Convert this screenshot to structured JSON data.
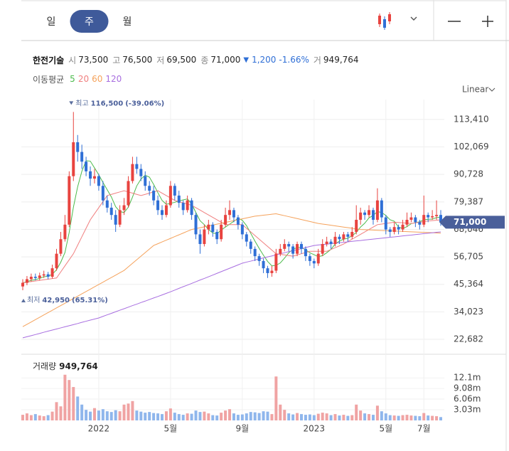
{
  "tabs": [
    {
      "label": "일",
      "active": false
    },
    {
      "label": "주",
      "active": true
    },
    {
      "label": "월",
      "active": false
    }
  ],
  "header": {
    "name": "한전기술",
    "fields": [
      {
        "label": "시",
        "value": "73,500"
      },
      {
        "label": "고",
        "value": "76,500"
      },
      {
        "label": "저",
        "value": "69,500"
      },
      {
        "label": "종",
        "value": "71,000"
      }
    ],
    "change": {
      "arrow": "▼",
      "amount": "1,200",
      "percent": "-1.66%"
    },
    "volume": {
      "label": "거",
      "value": "949,764"
    }
  },
  "chart_data": [
    {
      "type": "candlestick",
      "legend_title": "이동평균",
      "scale_label": "Linear",
      "log_scale": false,
      "grid": true,
      "up_color": "#e8433f",
      "down_color": "#2f6fd6",
      "categories": [
        null,
        null,
        null,
        null,
        null,
        null,
        null,
        null,
        null,
        null,
        null,
        null,
        null,
        null,
        null,
        null,
        null,
        null,
        "2022",
        null,
        null,
        null,
        null,
        null,
        null,
        null,
        null,
        null,
        null,
        null,
        null,
        null,
        null,
        null,
        null,
        "5월",
        null,
        null,
        null,
        null,
        null,
        null,
        null,
        null,
        null,
        null,
        null,
        null,
        null,
        null,
        null,
        null,
        "9월",
        null,
        null,
        null,
        null,
        null,
        null,
        null,
        null,
        null,
        null,
        null,
        null,
        null,
        null,
        null,
        null,
        "2023",
        null,
        null,
        null,
        null,
        null,
        null,
        null,
        null,
        null,
        null,
        null,
        null,
        null,
        null,
        null,
        null,
        "5월",
        null,
        null,
        null,
        null,
        null,
        null,
        null,
        null,
        "7월",
        null,
        null,
        null,
        null
      ],
      "open": [
        44500,
        46000,
        47500,
        48500,
        48000,
        49000,
        49500,
        48500,
        52000,
        58000,
        64000,
        70000,
        90000,
        104000,
        100000,
        96000,
        92000,
        89000,
        90000,
        86000,
        80000,
        77000,
        74000,
        70000,
        76000,
        78000,
        88000,
        95000,
        93000,
        90000,
        86000,
        84000,
        80000,
        76000,
        74000,
        78000,
        86000,
        82000,
        79000,
        76000,
        80000,
        74000,
        66000,
        62000,
        68000,
        70000,
        67000,
        64000,
        70000,
        74000,
        76000,
        73000,
        70000,
        66000,
        63000,
        60000,
        57000,
        55000,
        52000,
        50000,
        51000,
        58000,
        60000,
        62000,
        61000,
        58000,
        62000,
        60000,
        57000,
        55000,
        54000,
        58000,
        62000,
        63000,
        62000,
        65000,
        64000,
        66000,
        65000,
        67000,
        72000,
        75000,
        74000,
        76000,
        72000,
        80000,
        73000,
        68000,
        67000,
        69000,
        68000,
        70000,
        72000,
        73000,
        71000,
        70000,
        74000,
        73000,
        73500,
        74000
      ],
      "high": [
        47500,
        48800,
        49800,
        49800,
        50200,
        51000,
        50500,
        53500,
        60000,
        67000,
        74000,
        92000,
        116500,
        107000,
        103000,
        98000,
        94000,
        93000,
        91000,
        88000,
        82000,
        79000,
        76000,
        78000,
        81000,
        90000,
        98000,
        98000,
        95000,
        92000,
        88000,
        86000,
        82000,
        78000,
        80000,
        88000,
        87000,
        84000,
        80000,
        82000,
        81000,
        75000,
        68000,
        70000,
        72000,
        71000,
        68000,
        72000,
        77000,
        80000,
        77000,
        74000,
        71000,
        67000,
        64000,
        61000,
        58000,
        56000,
        53000,
        53000,
        60000,
        62000,
        64000,
        63000,
        62000,
        63000,
        63000,
        61000,
        58000,
        56000,
        60000,
        64000,
        65000,
        64000,
        67000,
        66000,
        67000,
        67000,
        69000,
        78000,
        77000,
        76000,
        78000,
        77000,
        85000,
        81000,
        74000,
        69000,
        71000,
        70000,
        72000,
        75000,
        75000,
        74000,
        72000,
        82000,
        75000,
        76000,
        80000,
        76000
      ],
      "low": [
        42950,
        45000,
        46500,
        47000,
        47000,
        48000,
        47500,
        47800,
        51000,
        57000,
        63000,
        69000,
        88000,
        96000,
        93000,
        90000,
        86000,
        87000,
        84000,
        78000,
        75000,
        72000,
        67000,
        69000,
        74000,
        77000,
        87000,
        91000,
        88000,
        84000,
        82000,
        78000,
        74000,
        72000,
        73000,
        77000,
        80000,
        77000,
        74000,
        75000,
        72000,
        64000,
        58000,
        61000,
        66000,
        65000,
        62000,
        63000,
        69000,
        72000,
        71000,
        68000,
        64000,
        61000,
        58000,
        55000,
        53000,
        50000,
        48000,
        48500,
        50000,
        57000,
        59000,
        59000,
        56000,
        57000,
        58000,
        55000,
        53000,
        52000,
        53000,
        57000,
        61000,
        60000,
        61000,
        62000,
        63000,
        63000,
        64000,
        66000,
        70000,
        72000,
        73000,
        70000,
        71000,
        71000,
        66000,
        65000,
        66000,
        66000,
        67000,
        69000,
        71000,
        69000,
        68000,
        69000,
        71000,
        72000,
        72000,
        69500
      ],
      "close": [
        46000,
        47500,
        48500,
        48000,
        49000,
        49500,
        48500,
        52000,
        58000,
        64000,
        70000,
        90000,
        104000,
        100000,
        96000,
        92000,
        89000,
        90000,
        86000,
        80000,
        77000,
        74000,
        70000,
        76000,
        78000,
        88000,
        95000,
        93000,
        90000,
        86000,
        84000,
        80000,
        76000,
        74000,
        78000,
        86000,
        82000,
        79000,
        76000,
        80000,
        74000,
        66000,
        62000,
        68000,
        70000,
        67000,
        64000,
        70000,
        74000,
        76000,
        73000,
        70000,
        66000,
        63000,
        60000,
        57000,
        55000,
        52000,
        50000,
        51000,
        58000,
        60000,
        62000,
        61000,
        58000,
        62000,
        60000,
        57000,
        55000,
        54000,
        58000,
        62000,
        63000,
        62000,
        65000,
        64000,
        66000,
        65000,
        67000,
        72000,
        75000,
        74000,
        76000,
        72000,
        80000,
        73000,
        68000,
        67000,
        69000,
        68000,
        70000,
        72000,
        73000,
        71000,
        70000,
        74000,
        73000,
        73500,
        74000,
        71000
      ],
      "series": [
        {
          "name": "5",
          "color": "#4cbb4c",
          "values": [
            46000,
            46500,
            47000,
            47300,
            47800,
            48500,
            48700,
            49500,
            51400,
            54500,
            58500,
            66800,
            77200,
            85600,
            92000,
            96400,
            96200,
            93400,
            90600,
            87400,
            84400,
            81400,
            77400,
            75400,
            75000,
            77200,
            81400,
            86000,
            88800,
            90400,
            89600,
            86600,
            83200,
            80000,
            78400,
            78800,
            79200,
            79800,
            80200,
            80600,
            78600,
            75000,
            71600,
            70000,
            68000,
            66600,
            66200,
            67800,
            69000,
            70200,
            71400,
            72600,
            71800,
            69600,
            66400,
            63200,
            60200,
            57400,
            54800,
            53000,
            53200,
            54200,
            56200,
            58400,
            59800,
            60600,
            60600,
            59600,
            58400,
            57600,
            56800,
            57200,
            58400,
            59800,
            62000,
            63200,
            64000,
            64400,
            65400,
            66800,
            69000,
            70600,
            72800,
            73800,
            75400,
            75000,
            73800,
            72000,
            71400,
            69000,
            68400,
            69200,
            70400,
            70800,
            71200,
            72000,
            72200,
            72300,
            72900,
            73100
          ]
        },
        {
          "name": "20",
          "color": "#f07f7f",
          "values": [
            46000,
            46250,
            46500,
            46750,
            47000,
            47250,
            47500,
            47750,
            48000,
            50500,
            53000,
            55500,
            58000,
            61500,
            65000,
            68500,
            72000,
            74500,
            77000,
            79500,
            82000,
            82500,
            83000,
            83500,
            84000,
            83500,
            83000,
            82500,
            82000,
            82500,
            83000,
            83500,
            84000,
            83000,
            82000,
            81000,
            80000,
            79500,
            79000,
            78500,
            78000,
            77000,
            76000,
            75000,
            74000,
            73000,
            72000,
            71000,
            70000,
            70000,
            70000,
            70000,
            70000,
            68500,
            67000,
            65500,
            64000,
            62500,
            61000,
            59500,
            58000,
            57750,
            57500,
            57250,
            57000,
            57500,
            58000,
            58500,
            59000,
            59000,
            59000,
            59000,
            59000,
            59750,
            60500,
            61250,
            62000,
            63000,
            64000,
            65000,
            66000,
            67000,
            68000,
            69000,
            70000,
            70250,
            70500,
            70750,
            71000,
            70900,
            70750,
            70600,
            70500,
            70750,
            71000,
            71250,
            71500,
            71650,
            71800,
            72000
          ]
        },
        {
          "name": "60",
          "color": "#f5a25b",
          "values": [
            27900,
            28870,
            29830,
            30800,
            31770,
            32740,
            33700,
            34670,
            35640,
            36600,
            37570,
            38540,
            39500,
            40470,
            41440,
            42400,
            43370,
            44340,
            45300,
            46270,
            47240,
            48200,
            49170,
            50140,
            51100,
            52570,
            54040,
            55510,
            56990,
            58460,
            59930,
            61400,
            62130,
            62870,
            63600,
            64330,
            65070,
            65800,
            66530,
            67270,
            68000,
            68370,
            68730,
            69100,
            69470,
            69830,
            70200,
            70570,
            70930,
            71300,
            71670,
            72030,
            72400,
            72770,
            73130,
            73500,
            73700,
            73900,
            74100,
            74300,
            74500,
            74100,
            73700,
            73300,
            72900,
            72500,
            72100,
            71700,
            71300,
            70900,
            70500,
            70250,
            70000,
            69750,
            69500,
            69250,
            69000,
            68750,
            68500,
            68250,
            68000,
            67920,
            67840,
            67760,
            67680,
            67610,
            67530,
            67450,
            67370,
            67290,
            67210,
            67130,
            67050,
            66970,
            66890,
            66820,
            66740,
            66660,
            66580,
            66500
          ]
        },
        {
          "name": "120",
          "color": "#a86ee0",
          "values": [
            23300,
            23750,
            24200,
            24650,
            25100,
            25600,
            26050,
            26500,
            26950,
            27400,
            27850,
            28300,
            28750,
            29200,
            29700,
            30150,
            30600,
            31050,
            31500,
            32150,
            32800,
            33400,
            34050,
            34700,
            35300,
            35950,
            36600,
            37200,
            37850,
            38450,
            39100,
            39750,
            40350,
            41000,
            41650,
            42300,
            43000,
            43700,
            44400,
            45050,
            45750,
            46450,
            47150,
            47800,
            48500,
            49200,
            49900,
            50600,
            51300,
            52000,
            52700,
            53400,
            54100,
            54550,
            54950,
            55400,
            55850,
            56250,
            56700,
            57100,
            57550,
            58000,
            58400,
            58850,
            59250,
            59700,
            60100,
            60550,
            61000,
            61400,
            61600,
            61800,
            61950,
            62150,
            62350,
            62550,
            62700,
            62900,
            63100,
            63300,
            63450,
            63650,
            63850,
            64050,
            64200,
            64400,
            64600,
            64800,
            64950,
            65150,
            65350,
            65550,
            65700,
            65900,
            66100,
            66300,
            66450,
            66650,
            66850,
            67000
          ]
        }
      ],
      "ylim": [
        17400,
        121600
      ],
      "yticks": [
        {
          "value": 22682,
          "label": "22,682"
        },
        {
          "value": 34023,
          "label": "34,023"
        },
        {
          "value": 45364,
          "label": "45,364"
        },
        {
          "value": 56705,
          "label": "56,705"
        },
        {
          "value": 68046,
          "label": "68,046"
        },
        {
          "value": 79387,
          "label": "79,387"
        },
        {
          "value": 90728,
          "label": "90,728"
        },
        {
          "value": 102069,
          "label": "102,069"
        },
        {
          "value": 113410,
          "label": "113,410"
        }
      ],
      "annotations": [
        {
          "text": "최고",
          "value": 116500,
          "value_label": "116,500",
          "change": "(-39.06%)"
        },
        {
          "text": "최저",
          "value": 42950,
          "value_label": "42,950",
          "change": "(65.31%)"
        }
      ],
      "last_price": {
        "value": 71000,
        "label": "71,000"
      }
    },
    {
      "type": "bar",
      "title": "거래량",
      "latest": {
        "value": 949764,
        "label": "949,764"
      },
      "grid": true,
      "up_color": "#f0a3a3",
      "down_color": "#8fb6ec",
      "values": [
        1600000,
        2000000,
        1500000,
        1800000,
        1400000,
        1200000,
        1500000,
        2500000,
        5200000,
        4000000,
        13000000,
        11500000,
        9500000,
        6800000,
        4500000,
        3000000,
        2500000,
        3500000,
        2800000,
        3200000,
        2600000,
        2400000,
        2900000,
        2600000,
        4500000,
        4800000,
        5500000,
        2800000,
        2500000,
        2200000,
        2400000,
        2100000,
        2000000,
        1800000,
        2600000,
        3400000,
        2200000,
        1800000,
        1600000,
        2000000,
        1900000,
        2800000,
        2400000,
        2500000,
        2000000,
        1500000,
        1400000,
        2200000,
        2800000,
        3200000,
        2000000,
        1600000,
        1700000,
        2000000,
        2400000,
        2300000,
        2100000,
        2600000,
        2500000,
        1800000,
        12500000,
        4500000,
        3000000,
        2000000,
        1700000,
        2100000,
        1800000,
        1600000,
        1700000,
        1500000,
        1900000,
        2200000,
        2000000,
        1500000,
        1800000,
        1400000,
        1600000,
        1300000,
        1500000,
        4500000,
        2800000,
        2000000,
        1800000,
        1600000,
        4200000,
        2600000,
        2000000,
        1500000,
        1400000,
        1300000,
        1500000,
        1600000,
        1400000,
        1300000,
        1200000,
        2100000,
        1400000,
        1300000,
        1200000,
        949764
      ],
      "ylim": [
        0,
        17000000
      ],
      "yticks": [
        {
          "value": 3030000,
          "label": "3.03m"
        },
        {
          "value": 6060000,
          "label": "6.06m"
        },
        {
          "value": 9080000,
          "label": "9.08m"
        },
        {
          "value": 12100000,
          "label": "12.1m"
        }
      ]
    }
  ]
}
